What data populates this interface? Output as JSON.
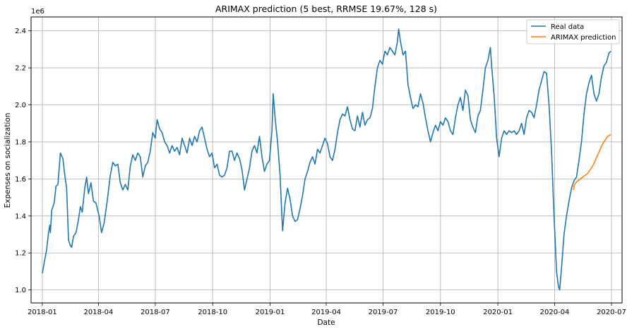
{
  "chart_data": {
    "type": "line",
    "title": "ARIMAX prediction (5 best, RRMSE 19.67%, 128 s)",
    "xlabel": "Date",
    "ylabel": "Expenses on socialization",
    "y_offset_label": "1e6",
    "xlim": [
      "2017-12-14",
      "2020-07-18"
    ],
    "ylim": [
      0.93,
      2.475
    ],
    "grid": true,
    "legend_position": "upper-right",
    "x_ticks": [
      {
        "date": "2018-01-01",
        "label": "2018-01"
      },
      {
        "date": "2018-04-01",
        "label": "2018-04"
      },
      {
        "date": "2018-07-01",
        "label": "2018-07"
      },
      {
        "date": "2018-10-01",
        "label": "2018-10"
      },
      {
        "date": "2019-01-01",
        "label": "2019-01"
      },
      {
        "date": "2019-04-01",
        "label": "2019-04"
      },
      {
        "date": "2019-07-01",
        "label": "2019-07"
      },
      {
        "date": "2019-10-01",
        "label": "2019-10"
      },
      {
        "date": "2020-01-01",
        "label": "2020-01"
      },
      {
        "date": "2020-04-01",
        "label": "2020-04"
      },
      {
        "date": "2020-07-01",
        "label": "2020-07"
      }
    ],
    "y_ticks": [
      {
        "value": 1.0,
        "label": "1.0"
      },
      {
        "value": 1.2,
        "label": "1.2"
      },
      {
        "value": 1.4,
        "label": "1.4"
      },
      {
        "value": 1.6,
        "label": "1.6"
      },
      {
        "value": 1.8,
        "label": "1.8"
      },
      {
        "value": 2.0,
        "label": "2.0"
      },
      {
        "value": 2.2,
        "label": "2.2"
      },
      {
        "value": 2.4,
        "label": "2.4"
      }
    ],
    "series": [
      {
        "name": "Real data",
        "color": "#1f77b4",
        "points": [
          [
            "2018-01-01",
            1.09
          ],
          [
            "2018-01-08",
            1.22
          ],
          [
            "2018-01-11",
            1.31
          ],
          [
            "2018-01-13",
            1.35
          ],
          [
            "2018-01-14",
            1.31
          ],
          [
            "2018-01-16",
            1.43
          ],
          [
            "2018-01-20",
            1.47
          ],
          [
            "2018-01-23",
            1.56
          ],
          [
            "2018-01-26",
            1.57
          ],
          [
            "2018-01-30",
            1.74
          ],
          [
            "2018-02-03",
            1.71
          ],
          [
            "2018-02-06",
            1.62
          ],
          [
            "2018-02-09",
            1.55
          ],
          [
            "2018-02-12",
            1.27
          ],
          [
            "2018-02-15",
            1.24
          ],
          [
            "2018-02-17",
            1.23
          ],
          [
            "2018-02-20",
            1.29
          ],
          [
            "2018-02-24",
            1.31
          ],
          [
            "2018-02-28",
            1.38
          ],
          [
            "2018-03-03",
            1.45
          ],
          [
            "2018-03-06",
            1.42
          ],
          [
            "2018-03-10",
            1.55
          ],
          [
            "2018-03-13",
            1.61
          ],
          [
            "2018-03-16",
            1.52
          ],
          [
            "2018-03-20",
            1.58
          ],
          [
            "2018-03-24",
            1.48
          ],
          [
            "2018-03-28",
            1.47
          ],
          [
            "2018-04-02",
            1.4
          ],
          [
            "2018-04-06",
            1.31
          ],
          [
            "2018-04-10",
            1.36
          ],
          [
            "2018-04-15",
            1.48
          ],
          [
            "2018-04-20",
            1.62
          ],
          [
            "2018-04-24",
            1.69
          ],
          [
            "2018-04-28",
            1.67
          ],
          [
            "2018-05-02",
            1.68
          ],
          [
            "2018-05-06",
            1.58
          ],
          [
            "2018-05-10",
            1.54
          ],
          [
            "2018-05-14",
            1.57
          ],
          [
            "2018-05-18",
            1.54
          ],
          [
            "2018-05-22",
            1.67
          ],
          [
            "2018-05-26",
            1.73
          ],
          [
            "2018-05-30",
            1.7
          ],
          [
            "2018-06-03",
            1.74
          ],
          [
            "2018-06-07",
            1.72
          ],
          [
            "2018-06-11",
            1.61
          ],
          [
            "2018-06-15",
            1.67
          ],
          [
            "2018-06-19",
            1.69
          ],
          [
            "2018-06-23",
            1.75
          ],
          [
            "2018-06-27",
            1.85
          ],
          [
            "2018-07-01",
            1.82
          ],
          [
            "2018-07-04",
            1.92
          ],
          [
            "2018-07-08",
            1.87
          ],
          [
            "2018-07-12",
            1.85
          ],
          [
            "2018-07-16",
            1.8
          ],
          [
            "2018-07-20",
            1.78
          ],
          [
            "2018-07-24",
            1.74
          ],
          [
            "2018-07-28",
            1.78
          ],
          [
            "2018-08-01",
            1.75
          ],
          [
            "2018-08-05",
            1.77
          ],
          [
            "2018-08-09",
            1.73
          ],
          [
            "2018-08-13",
            1.82
          ],
          [
            "2018-08-17",
            1.78
          ],
          [
            "2018-08-21",
            1.74
          ],
          [
            "2018-08-25",
            1.82
          ],
          [
            "2018-08-29",
            1.78
          ],
          [
            "2018-09-02",
            1.83
          ],
          [
            "2018-09-06",
            1.8
          ],
          [
            "2018-09-10",
            1.86
          ],
          [
            "2018-09-14",
            1.88
          ],
          [
            "2018-09-18",
            1.82
          ],
          [
            "2018-09-22",
            1.76
          ],
          [
            "2018-09-26",
            1.72
          ],
          [
            "2018-09-30",
            1.74
          ],
          [
            "2018-10-04",
            1.66
          ],
          [
            "2018-10-08",
            1.68
          ],
          [
            "2018-10-12",
            1.62
          ],
          [
            "2018-10-16",
            1.61
          ],
          [
            "2018-10-20",
            1.62
          ],
          [
            "2018-10-24",
            1.66
          ],
          [
            "2018-10-28",
            1.75
          ],
          [
            "2018-11-01",
            1.75
          ],
          [
            "2018-11-05",
            1.7
          ],
          [
            "2018-11-09",
            1.74
          ],
          [
            "2018-11-13",
            1.71
          ],
          [
            "2018-11-17",
            1.65
          ],
          [
            "2018-11-21",
            1.54
          ],
          [
            "2018-11-25",
            1.6
          ],
          [
            "2018-11-29",
            1.66
          ],
          [
            "2018-12-03",
            1.75
          ],
          [
            "2018-12-07",
            1.78
          ],
          [
            "2018-12-11",
            1.74
          ],
          [
            "2018-12-15",
            1.83
          ],
          [
            "2018-12-19",
            1.72
          ],
          [
            "2018-12-23",
            1.64
          ],
          [
            "2018-12-27",
            1.68
          ],
          [
            "2018-12-31",
            1.7
          ],
          [
            "2019-01-04",
            1.86
          ],
          [
            "2019-01-06",
            2.06
          ],
          [
            "2019-01-09",
            1.93
          ],
          [
            "2019-01-13",
            1.8
          ],
          [
            "2019-01-17",
            1.62
          ],
          [
            "2019-01-21",
            1.32
          ],
          [
            "2019-01-25",
            1.47
          ],
          [
            "2019-01-29",
            1.55
          ],
          [
            "2019-02-02",
            1.49
          ],
          [
            "2019-02-06",
            1.4
          ],
          [
            "2019-02-10",
            1.37
          ],
          [
            "2019-02-14",
            1.38
          ],
          [
            "2019-02-18",
            1.44
          ],
          [
            "2019-02-22",
            1.51
          ],
          [
            "2019-02-26",
            1.6
          ],
          [
            "2019-03-02",
            1.64
          ],
          [
            "2019-03-06",
            1.69
          ],
          [
            "2019-03-10",
            1.72
          ],
          [
            "2019-03-14",
            1.68
          ],
          [
            "2019-03-18",
            1.76
          ],
          [
            "2019-03-22",
            1.74
          ],
          [
            "2019-03-26",
            1.78
          ],
          [
            "2019-03-30",
            1.82
          ],
          [
            "2019-04-03",
            1.79
          ],
          [
            "2019-04-07",
            1.72
          ],
          [
            "2019-04-11",
            1.7
          ],
          [
            "2019-04-15",
            1.76
          ],
          [
            "2019-04-19",
            1.85
          ],
          [
            "2019-04-23",
            1.92
          ],
          [
            "2019-04-27",
            1.95
          ],
          [
            "2019-05-01",
            1.94
          ],
          [
            "2019-05-05",
            1.99
          ],
          [
            "2019-05-09",
            1.92
          ],
          [
            "2019-05-13",
            1.87
          ],
          [
            "2019-05-17",
            1.86
          ],
          [
            "2019-05-21",
            1.94
          ],
          [
            "2019-05-25",
            1.88
          ],
          [
            "2019-05-29",
            1.96
          ],
          [
            "2019-06-02",
            1.89
          ],
          [
            "2019-06-06",
            1.92
          ],
          [
            "2019-06-10",
            1.93
          ],
          [
            "2019-06-14",
            1.98
          ],
          [
            "2019-06-18",
            2.1
          ],
          [
            "2019-06-22",
            2.2
          ],
          [
            "2019-06-26",
            2.24
          ],
          [
            "2019-06-30",
            2.22
          ],
          [
            "2019-07-04",
            2.29
          ],
          [
            "2019-07-08",
            2.27
          ],
          [
            "2019-07-12",
            2.31
          ],
          [
            "2019-07-16",
            2.29
          ],
          [
            "2019-07-20",
            2.27
          ],
          [
            "2019-07-24",
            2.34
          ],
          [
            "2019-07-26",
            2.41
          ],
          [
            "2019-07-29",
            2.34
          ],
          [
            "2019-08-02",
            2.27
          ],
          [
            "2019-08-06",
            2.29
          ],
          [
            "2019-08-10",
            2.11
          ],
          [
            "2019-08-14",
            2.04
          ],
          [
            "2019-08-18",
            1.98
          ],
          [
            "2019-08-22",
            2.0
          ],
          [
            "2019-08-26",
            1.99
          ],
          [
            "2019-08-30",
            2.06
          ],
          [
            "2019-09-03",
            2.01
          ],
          [
            "2019-09-07",
            1.93
          ],
          [
            "2019-09-11",
            1.86
          ],
          [
            "2019-09-15",
            1.8
          ],
          [
            "2019-09-19",
            1.85
          ],
          [
            "2019-09-23",
            1.89
          ],
          [
            "2019-09-27",
            1.86
          ],
          [
            "2019-10-01",
            1.91
          ],
          [
            "2019-10-05",
            1.89
          ],
          [
            "2019-10-09",
            1.93
          ],
          [
            "2019-10-13",
            1.91
          ],
          [
            "2019-10-17",
            1.86
          ],
          [
            "2019-10-21",
            1.84
          ],
          [
            "2019-10-25",
            1.93
          ],
          [
            "2019-10-29",
            2.0
          ],
          [
            "2019-11-02",
            2.04
          ],
          [
            "2019-11-06",
            1.97
          ],
          [
            "2019-11-10",
            2.08
          ],
          [
            "2019-11-14",
            2.05
          ],
          [
            "2019-11-18",
            1.92
          ],
          [
            "2019-11-22",
            1.88
          ],
          [
            "2019-11-26",
            1.85
          ],
          [
            "2019-11-30",
            1.94
          ],
          [
            "2019-12-04",
            1.97
          ],
          [
            "2019-12-08",
            2.08
          ],
          [
            "2019-12-12",
            2.2
          ],
          [
            "2019-12-16",
            2.24
          ],
          [
            "2019-12-20",
            2.31
          ],
          [
            "2019-12-22",
            2.21
          ],
          [
            "2019-12-26",
            2.05
          ],
          [
            "2019-12-30",
            1.82
          ],
          [
            "2020-01-03",
            1.72
          ],
          [
            "2020-01-07",
            1.82
          ],
          [
            "2020-01-11",
            1.86
          ],
          [
            "2020-01-15",
            1.84
          ],
          [
            "2020-01-19",
            1.86
          ],
          [
            "2020-01-23",
            1.85
          ],
          [
            "2020-01-27",
            1.86
          ],
          [
            "2020-01-31",
            1.84
          ],
          [
            "2020-02-04",
            1.86
          ],
          [
            "2020-02-08",
            1.9
          ],
          [
            "2020-02-12",
            1.84
          ],
          [
            "2020-02-16",
            1.93
          ],
          [
            "2020-02-20",
            1.97
          ],
          [
            "2020-02-24",
            1.96
          ],
          [
            "2020-02-28",
            1.93
          ],
          [
            "2020-03-03",
            2.0
          ],
          [
            "2020-03-07",
            2.08
          ],
          [
            "2020-03-11",
            2.13
          ],
          [
            "2020-03-15",
            2.18
          ],
          [
            "2020-03-19",
            2.17
          ],
          [
            "2020-03-23",
            2.0
          ],
          [
            "2020-03-27",
            1.75
          ],
          [
            "2020-03-31",
            1.4
          ],
          [
            "2020-04-04",
            1.1
          ],
          [
            "2020-04-07",
            1.02
          ],
          [
            "2020-04-09",
            1.0
          ],
          [
            "2020-04-12",
            1.12
          ],
          [
            "2020-04-16",
            1.3
          ],
          [
            "2020-04-20",
            1.4
          ],
          [
            "2020-04-24",
            1.48
          ],
          [
            "2020-04-28",
            1.55
          ],
          [
            "2020-05-02",
            1.59
          ],
          [
            "2020-05-06",
            1.61
          ],
          [
            "2020-05-10",
            1.7
          ],
          [
            "2020-05-14",
            1.8
          ],
          [
            "2020-05-18",
            1.95
          ],
          [
            "2020-05-22",
            2.06
          ],
          [
            "2020-05-26",
            2.12
          ],
          [
            "2020-05-30",
            2.16
          ],
          [
            "2020-06-03",
            2.06
          ],
          [
            "2020-06-07",
            2.02
          ],
          [
            "2020-06-11",
            2.06
          ],
          [
            "2020-06-15",
            2.15
          ],
          [
            "2020-06-19",
            2.21
          ],
          [
            "2020-06-23",
            2.23
          ],
          [
            "2020-06-27",
            2.28
          ],
          [
            "2020-06-30",
            2.29
          ]
        ]
      },
      {
        "name": "ARIMAX prediction",
        "color": "#ff7f0e",
        "points": [
          [
            "2020-05-01",
            1.54
          ],
          [
            "2020-05-02",
            1.56
          ],
          [
            "2020-05-03",
            1.57
          ],
          [
            "2020-05-05",
            1.58
          ],
          [
            "2020-05-08",
            1.59
          ],
          [
            "2020-05-12",
            1.6
          ],
          [
            "2020-05-16",
            1.61
          ],
          [
            "2020-05-20",
            1.62
          ],
          [
            "2020-05-24",
            1.63
          ],
          [
            "2020-05-28",
            1.65
          ],
          [
            "2020-06-01",
            1.67
          ],
          [
            "2020-06-05",
            1.7
          ],
          [
            "2020-06-09",
            1.73
          ],
          [
            "2020-06-13",
            1.76
          ],
          [
            "2020-06-17",
            1.79
          ],
          [
            "2020-06-21",
            1.81
          ],
          [
            "2020-06-25",
            1.83
          ],
          [
            "2020-06-30",
            1.84
          ]
        ]
      }
    ]
  }
}
